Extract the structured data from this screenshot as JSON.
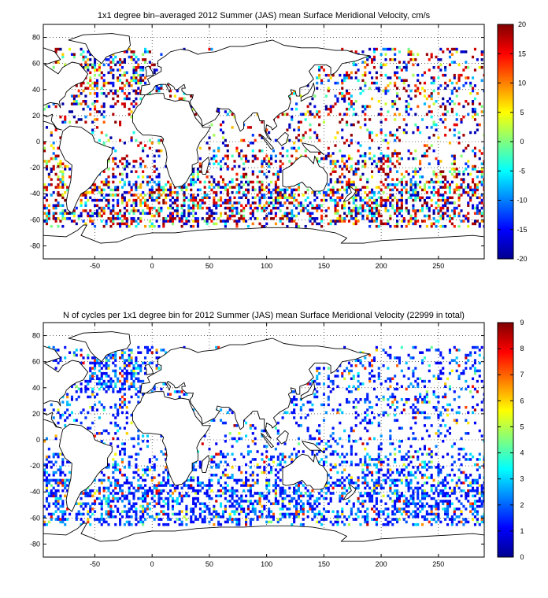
{
  "chart_data": [
    {
      "type": "heatmap",
      "title": "1x1 degree bin–averaged 2012 Summer (JAS) mean Surface Meridional Velocity, cm/s",
      "xlabel": "",
      "ylabel": "",
      "xlim": [
        -95,
        290
      ],
      "ylim": [
        -90,
        90
      ],
      "xticks": [
        "-50",
        "0",
        "50",
        "100",
        "150",
        "200",
        "250"
      ],
      "yticks": [
        "80",
        "60",
        "40",
        "20",
        "0",
        "-20",
        "-40",
        "-60",
        "-80"
      ],
      "grid": true,
      "colorbar": {
        "min": -20,
        "max": 20,
        "ticks": [
          "20",
          "15",
          "10",
          "5",
          "0",
          "-5",
          "-10",
          "-15",
          "-20"
        ],
        "colormap": "jet"
      }
    },
    {
      "type": "heatmap",
      "title": "N of cycles per 1x1 degree bin for 2012 Summer (JAS) mean Surface Meridional Velocity (22999 in total)",
      "xlabel": "",
      "ylabel": "",
      "xlim": [
        -95,
        290
      ],
      "ylim": [
        -90,
        90
      ],
      "xticks": [
        "-50",
        "0",
        "50",
        "100",
        "150",
        "200",
        "250"
      ],
      "yticks": [
        "80",
        "60",
        "40",
        "20",
        "0",
        "-20",
        "-40",
        "-60",
        "-80"
      ],
      "grid": true,
      "colorbar": {
        "min": 0,
        "max": 9,
        "ticks": [
          "9",
          "8",
          "7",
          "6",
          "5",
          "4",
          "3",
          "2",
          "1",
          "0"
        ],
        "colormap": "jet"
      }
    }
  ]
}
